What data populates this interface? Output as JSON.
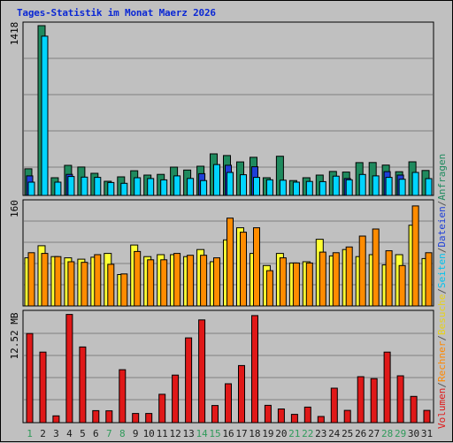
{
  "title": "Tages-Statistik im Monat Maerz 2026",
  "legend_right_top": [
    {
      "text": "Anfragen",
      "color": "#1f8a5e"
    },
    {
      "text": "/",
      "color": "#555555"
    },
    {
      "text": "Dateien",
      "color": "#1e3fd8"
    },
    {
      "text": "/",
      "color": "#555555"
    },
    {
      "text": "Seiten",
      "color": "#00c2ee"
    },
    {
      "text": "/",
      "color": "#555555"
    },
    {
      "text": "Besuche",
      "color": "#e7d21a"
    },
    {
      "text": "/",
      "color": "#555555"
    },
    {
      "text": "Rechner",
      "color": "#ff8800"
    },
    {
      "text": "/",
      "color": "#555555"
    },
    {
      "text": "Volumen",
      "color": "#e01818"
    }
  ],
  "colors": {
    "grid": "#808080",
    "anfragen": "#1f8a5e",
    "dateien": "#1e3fd8",
    "seiten": "#00d4ff",
    "besuche": "#ffff33",
    "rechner": "#ff8c00",
    "volumen": "#e01818",
    "weekday_label": "#0b28d4",
    "weekend_label": "#2f9a5a"
  },
  "chart_data": [
    {
      "type": "bar",
      "panel": "top",
      "ylabel_max": "1418",
      "ylim": [
        0,
        1418
      ],
      "categories": [
        "1",
        "2",
        "3",
        "4",
        "5",
        "6",
        "7",
        "8",
        "9",
        "10",
        "11",
        "12",
        "13",
        "14",
        "15",
        "16",
        "17",
        "18",
        "19",
        "20",
        "21",
        "22",
        "23",
        "24",
        "25",
        "26",
        "27",
        "28",
        "29",
        "30",
        "31"
      ],
      "weekend_days": [
        "1",
        "7",
        "8",
        "14",
        "15",
        "21",
        "22",
        "28",
        "29"
      ],
      "series": [
        {
          "name": "Anfragen",
          "values": [
            222,
            1418,
            148,
            251,
            237,
            185,
            118,
            155,
            206,
            170,
            176,
            236,
            212,
            244,
            347,
            333,
            280,
            318,
            148,
            327,
            124,
            148,
            170,
            200,
            195,
            274,
            275,
            253,
            198,
            281,
            208
          ]
        },
        {
          "name": "Dateien",
          "values": [
            163,
            0,
            0,
            176,
            0,
            0,
            0,
            0,
            0,
            0,
            0,
            0,
            0,
            182,
            0,
            252,
            0,
            239,
            0,
            0,
            0,
            0,
            0,
            0,
            141,
            0,
            0,
            199,
            170,
            0,
            0
          ]
        },
        {
          "name": "Seiten",
          "values": [
            111,
            1330,
            111,
            158,
            153,
            151,
            108,
            101,
            148,
            141,
            130,
            163,
            142,
            124,
            258,
            192,
            173,
            151,
            131,
            127,
            111,
            117,
            115,
            161,
            131,
            175,
            163,
            151,
            135,
            192,
            140
          ]
        }
      ]
    },
    {
      "type": "bar",
      "panel": "middle",
      "ylabel_max": "160",
      "ylim": [
        0,
        160
      ],
      "categories": [
        "1",
        "2",
        "3",
        "4",
        "5",
        "6",
        "7",
        "8",
        "9",
        "10",
        "11",
        "12",
        "13",
        "14",
        "15",
        "16",
        "17",
        "18",
        "19",
        "20",
        "21",
        "22",
        "23",
        "24",
        "25",
        "26",
        "27",
        "28",
        "29",
        "30",
        "31"
      ],
      "series": [
        {
          "name": "Besuche",
          "values": [
            75,
            94,
            77,
            75,
            73,
            76,
            82,
            49,
            95,
            77,
            80,
            80,
            77,
            88,
            69,
            103,
            122,
            82,
            63,
            82,
            67,
            69,
            104,
            78,
            88,
            77,
            80,
            64,
            80,
            126,
            74
          ]
        },
        {
          "name": "Rechner",
          "values": [
            83,
            82,
            77,
            69,
            68,
            80,
            65,
            50,
            85,
            72,
            72,
            82,
            79,
            79,
            75,
            137,
            115,
            122,
            55,
            75,
            67,
            67,
            84,
            83,
            92,
            109,
            120,
            86,
            63,
            156,
            83
          ]
        }
      ]
    },
    {
      "type": "bar",
      "panel": "bottom",
      "ylabel_max": "12.52 MB",
      "ylim": [
        0,
        12.52
      ],
      "unit": "MB",
      "categories": [
        "1",
        "2",
        "3",
        "4",
        "5",
        "6",
        "7",
        "8",
        "9",
        "10",
        "11",
        "12",
        "13",
        "14",
        "15",
        "16",
        "17",
        "18",
        "19",
        "20",
        "21",
        "22",
        "23",
        "24",
        "25",
        "26",
        "27",
        "28",
        "29",
        "30",
        "31"
      ],
      "series": [
        {
          "name": "Volumen",
          "values": [
            10.26,
            8.12,
            0.78,
            12.46,
            8.71,
            1.38,
            1.36,
            6.1,
            1.06,
            1.06,
            3.27,
            5.48,
            9.76,
            11.83,
            1.97,
            4.48,
            6.58,
            12.33,
            2.0,
            1.58,
            0.96,
            1.79,
            0.71,
            3.97,
            1.41,
            5.29,
            5.07,
            8.12,
            5.39,
            3.02,
            1.41
          ]
        }
      ]
    }
  ]
}
